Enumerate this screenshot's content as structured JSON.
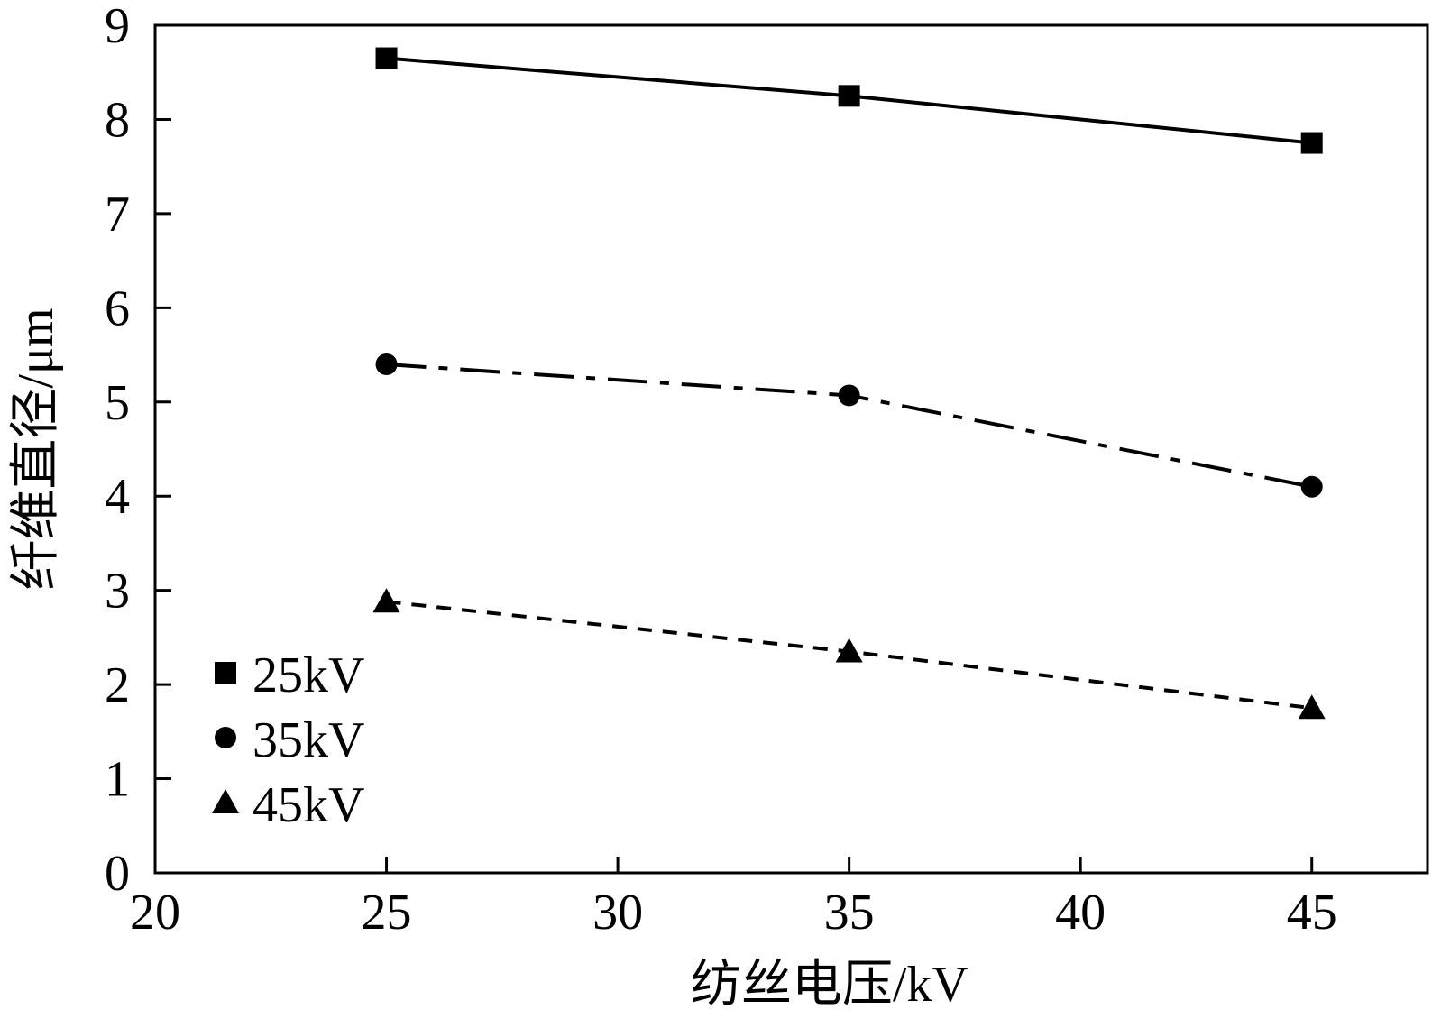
{
  "chart_data": {
    "type": "line",
    "xlabel": "纺丝电压/kV",
    "ylabel": "纤维直径/μm",
    "xlim": [
      20,
      47.5
    ],
    "ylim": [
      0,
      9
    ],
    "xticks": [
      20,
      25,
      30,
      35,
      40,
      45
    ],
    "yticks": [
      0,
      1,
      2,
      3,
      4,
      5,
      6,
      7,
      8,
      9
    ],
    "grid": false,
    "legend_position": "bottom-left",
    "series": [
      {
        "name": "25kV",
        "marker": "square",
        "line_style": "solid",
        "x": [
          25,
          35,
          45
        ],
        "y": [
          8.65,
          8.25,
          7.75
        ]
      },
      {
        "name": "35kV",
        "marker": "circle",
        "line_style": "dash-dot",
        "x": [
          25,
          35,
          45
        ],
        "y": [
          5.4,
          5.07,
          4.1
        ]
      },
      {
        "name": "45kV",
        "marker": "triangle",
        "line_style": "dashed",
        "x": [
          25,
          35,
          45
        ],
        "y": [
          2.88,
          2.35,
          1.75
        ]
      }
    ]
  }
}
